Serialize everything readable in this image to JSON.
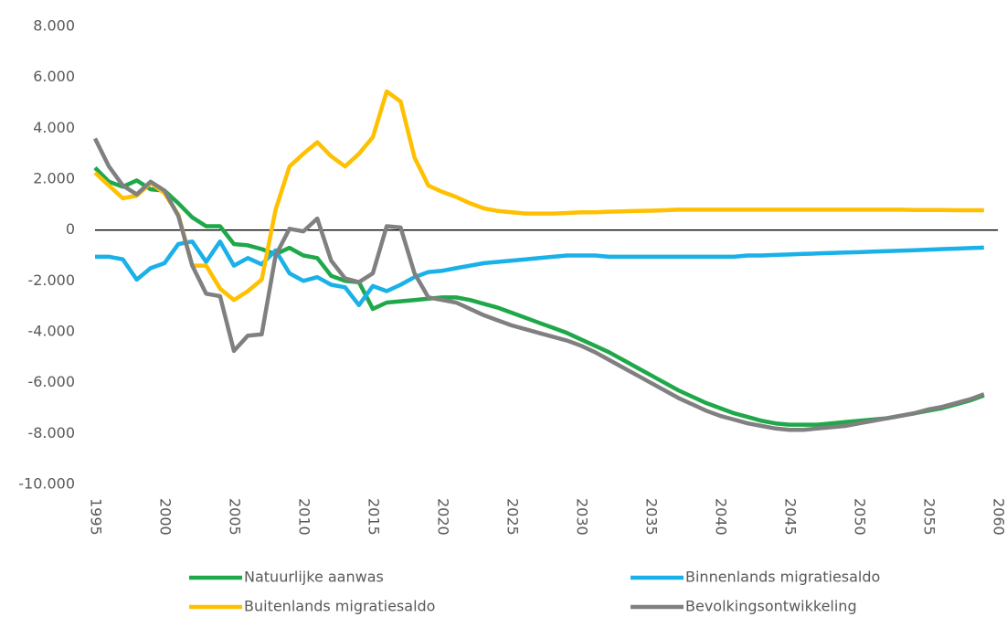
{
  "chart_data": {
    "type": "line",
    "x": [
      1995,
      1996,
      1997,
      1998,
      1999,
      2000,
      2001,
      2002,
      2003,
      2004,
      2005,
      2006,
      2007,
      2008,
      2009,
      2010,
      2011,
      2012,
      2013,
      2014,
      2015,
      2016,
      2017,
      2018,
      2019,
      2020,
      2021,
      2022,
      2023,
      2024,
      2025,
      2026,
      2027,
      2028,
      2029,
      2030,
      2031,
      2032,
      2033,
      2034,
      2035,
      2036,
      2037,
      2038,
      2039,
      2040,
      2041,
      2042,
      2043,
      2044,
      2045,
      2046,
      2047,
      2048,
      2049,
      2050,
      2051,
      2052,
      2053,
      2054,
      2055,
      2056,
      2057,
      2058,
      2059
    ],
    "xlim": [
      1995,
      2060
    ],
    "xticks": [
      1995,
      2000,
      2005,
      2010,
      2015,
      2020,
      2025,
      2030,
      2035,
      2040,
      2045,
      2050,
      2055,
      2060
    ],
    "ylim": [
      -10000,
      8000
    ],
    "yticks": [
      {
        "value": -10000,
        "label": "-10.000"
      },
      {
        "value": -8000,
        "label": "-8.000"
      },
      {
        "value": -6000,
        "label": "-6.000"
      },
      {
        "value": -4000,
        "label": "-4.000"
      },
      {
        "value": -2000,
        "label": "-2.000"
      },
      0,
      {
        "value": 2000,
        "label": "2.000"
      },
      {
        "value": 4000,
        "label": "4.000"
      },
      {
        "value": 6000,
        "label": "6.000"
      },
      {
        "value": 8000,
        "label": "8.000"
      }
    ],
    "grid": false,
    "legend": "bottom",
    "series": [
      {
        "name": "Natuurlijke aanwas",
        "color": "#1fa84a",
        "values": [
          2450,
          1900,
          1700,
          1950,
          1600,
          1550,
          1050,
          500,
          150,
          150,
          -550,
          -600,
          -750,
          -950,
          -700,
          -1000,
          -1100,
          -1800,
          -2000,
          -2050,
          -3100,
          -2850,
          -2800,
          -2750,
          -2700,
          -2650,
          -2650,
          -2750,
          -2900,
          -3050,
          -3250,
          -3450,
          -3650,
          -3850,
          -4050,
          -4300,
          -4550,
          -4800,
          -5100,
          -5400,
          -5700,
          -6000,
          -6300,
          -6550,
          -6800,
          -7000,
          -7200,
          -7350,
          -7500,
          -7600,
          -7650,
          -7650,
          -7650,
          -7600,
          -7550,
          -7500,
          -7450,
          -7400,
          -7300,
          -7200,
          -7100,
          -7000,
          -6850,
          -6700,
          -6500
        ]
      },
      {
        "name": "Binnenlands migratiesaldo",
        "color": "#1ab0e8",
        "values": [
          -1050,
          -1050,
          -1150,
          -1950,
          -1500,
          -1300,
          -550,
          -450,
          -1250,
          -450,
          -1400,
          -1100,
          -1350,
          -800,
          -1700,
          -2000,
          -1850,
          -2150,
          -2250,
          -2950,
          -2200,
          -2400,
          -2150,
          -1850,
          -1650,
          -1600,
          -1500,
          -1400,
          -1300,
          -1250,
          -1200,
          -1150,
          -1100,
          -1050,
          -1000,
          -1000,
          -1000,
          -1050,
          -1050,
          -1050,
          -1050,
          -1050,
          -1050,
          -1050,
          -1050,
          -1050,
          -1050,
          -1000,
          -1000,
          -980,
          -960,
          -940,
          -920,
          -900,
          -880,
          -870,
          -850,
          -830,
          -810,
          -790,
          -770,
          -750,
          -730,
          -710,
          -690
        ]
      },
      {
        "name": "Buitenlands migratiesaldo",
        "color": "#ffc000",
        "values": [
          2250,
          1750,
          1250,
          1350,
          1850,
          1450,
          600,
          -1400,
          -1400,
          -2300,
          -2750,
          -2400,
          -1950,
          800,
          2500,
          3000,
          3450,
          2900,
          2500,
          3000,
          3650,
          5450,
          5050,
          2850,
          1750,
          1500,
          1300,
          1050,
          850,
          750,
          700,
          650,
          650,
          650,
          670,
          700,
          700,
          720,
          730,
          750,
          760,
          780,
          800,
          800,
          800,
          800,
          800,
          800,
          800,
          800,
          800,
          800,
          800,
          800,
          800,
          800,
          800,
          800,
          800,
          790,
          790,
          790,
          780,
          780,
          780
        ]
      },
      {
        "name": "Bevolkingsontwikkeling",
        "color": "#808080",
        "values": [
          3600,
          2500,
          1750,
          1400,
          1900,
          1550,
          550,
          -1400,
          -2500,
          -2600,
          -4750,
          -4150,
          -4100,
          -1000,
          50,
          -50,
          450,
          -1200,
          -1900,
          -2050,
          -1700,
          150,
          100,
          -1700,
          -2650,
          -2750,
          -2850,
          -3100,
          -3350,
          -3550,
          -3750,
          -3900,
          -4050,
          -4200,
          -4350,
          -4550,
          -4800,
          -5100,
          -5400,
          -5700,
          -6000,
          -6300,
          -6600,
          -6850,
          -7100,
          -7300,
          -7450,
          -7600,
          -7700,
          -7800,
          -7850,
          -7850,
          -7800,
          -7750,
          -7700,
          -7600,
          -7500,
          -7400,
          -7300,
          -7200,
          -7050,
          -6950,
          -6800,
          -6650,
          -6450
        ]
      }
    ]
  }
}
